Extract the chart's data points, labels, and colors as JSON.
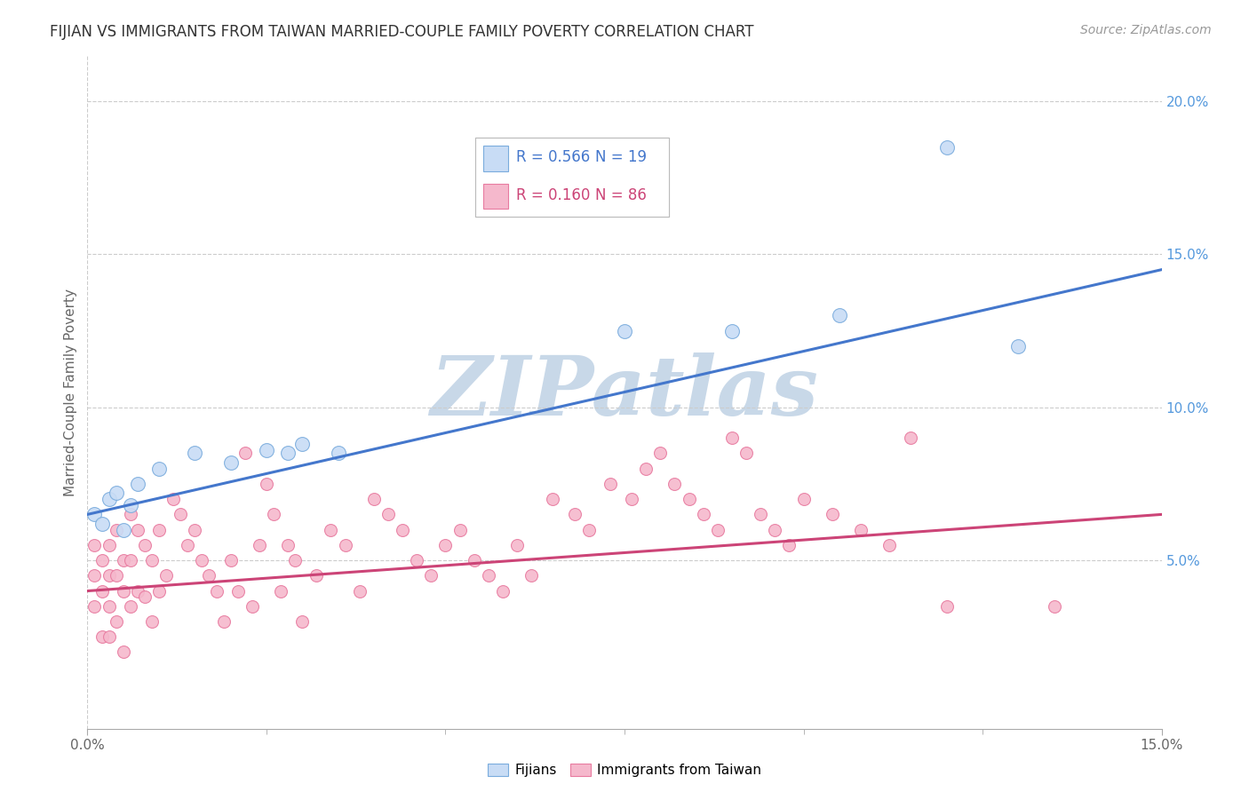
{
  "title": "FIJIAN VS IMMIGRANTS FROM TAIWAN MARRIED-COUPLE FAMILY POVERTY CORRELATION CHART",
  "source_text": "Source: ZipAtlas.com",
  "ylabel": "Married-Couple Family Poverty",
  "xlim": [
    0.0,
    0.15
  ],
  "ylim": [
    -0.005,
    0.215
  ],
  "xticks_major": [
    0.0,
    0.15
  ],
  "xticks_minor": [
    0.025,
    0.05,
    0.075,
    0.1,
    0.125
  ],
  "yticks": [
    0.05,
    0.1,
    0.15,
    0.2
  ],
  "xticklabels_major": [
    "0.0%",
    "15.0%"
  ],
  "yticklabels": [
    "5.0%",
    "10.0%",
    "15.0%",
    "20.0%"
  ],
  "fijian_color": "#c8dcf5",
  "fijian_edge_color": "#7aacdd",
  "taiwan_color": "#f5b8cc",
  "taiwan_edge_color": "#e87ba0",
  "blue_line_color": "#4477cc",
  "pink_line_color": "#cc4477",
  "legend_R1": "R = 0.566",
  "legend_N1": "N = 19",
  "legend_R2": "R = 0.160",
  "legend_N2": "N = 86",
  "legend_label1": "Fijians",
  "legend_label2": "Immigrants from Taiwan",
  "watermark": "ZIPatlas",
  "watermark_color": "#c8d8e8",
  "blue_line_x0": 0.0,
  "blue_line_y0": 0.065,
  "blue_line_x1": 0.15,
  "blue_line_y1": 0.145,
  "pink_line_x0": 0.0,
  "pink_line_y0": 0.04,
  "pink_line_x1": 0.15,
  "pink_line_y1": 0.065,
  "fijian_x": [
    0.001,
    0.002,
    0.003,
    0.004,
    0.005,
    0.006,
    0.007,
    0.01,
    0.015,
    0.02,
    0.025,
    0.028,
    0.03,
    0.035,
    0.075,
    0.09,
    0.105,
    0.12,
    0.13
  ],
  "fijian_y": [
    0.065,
    0.062,
    0.07,
    0.072,
    0.06,
    0.068,
    0.075,
    0.08,
    0.085,
    0.082,
    0.086,
    0.085,
    0.088,
    0.085,
    0.125,
    0.125,
    0.13,
    0.185,
    0.12
  ],
  "taiwan_x": [
    0.001,
    0.001,
    0.001,
    0.002,
    0.002,
    0.002,
    0.003,
    0.003,
    0.003,
    0.003,
    0.004,
    0.004,
    0.004,
    0.005,
    0.005,
    0.005,
    0.006,
    0.006,
    0.006,
    0.007,
    0.007,
    0.008,
    0.008,
    0.009,
    0.009,
    0.01,
    0.01,
    0.011,
    0.012,
    0.013,
    0.014,
    0.015,
    0.016,
    0.017,
    0.018,
    0.019,
    0.02,
    0.021,
    0.022,
    0.023,
    0.024,
    0.025,
    0.026,
    0.027,
    0.028,
    0.029,
    0.03,
    0.032,
    0.034,
    0.036,
    0.038,
    0.04,
    0.042,
    0.044,
    0.046,
    0.048,
    0.05,
    0.052,
    0.054,
    0.056,
    0.058,
    0.06,
    0.062,
    0.065,
    0.068,
    0.07,
    0.073,
    0.076,
    0.078,
    0.08,
    0.082,
    0.084,
    0.086,
    0.088,
    0.09,
    0.092,
    0.094,
    0.096,
    0.098,
    0.1,
    0.104,
    0.108,
    0.112,
    0.115,
    0.12,
    0.135
  ],
  "taiwan_y": [
    0.055,
    0.045,
    0.035,
    0.05,
    0.04,
    0.025,
    0.055,
    0.045,
    0.035,
    0.025,
    0.06,
    0.045,
    0.03,
    0.05,
    0.04,
    0.02,
    0.065,
    0.05,
    0.035,
    0.06,
    0.04,
    0.055,
    0.038,
    0.05,
    0.03,
    0.06,
    0.04,
    0.045,
    0.07,
    0.065,
    0.055,
    0.06,
    0.05,
    0.045,
    0.04,
    0.03,
    0.05,
    0.04,
    0.085,
    0.035,
    0.055,
    0.075,
    0.065,
    0.04,
    0.055,
    0.05,
    0.03,
    0.045,
    0.06,
    0.055,
    0.04,
    0.07,
    0.065,
    0.06,
    0.05,
    0.045,
    0.055,
    0.06,
    0.05,
    0.045,
    0.04,
    0.055,
    0.045,
    0.07,
    0.065,
    0.06,
    0.075,
    0.07,
    0.08,
    0.085,
    0.075,
    0.07,
    0.065,
    0.06,
    0.09,
    0.085,
    0.065,
    0.06,
    0.055,
    0.07,
    0.065,
    0.06,
    0.055,
    0.09,
    0.035,
    0.035
  ]
}
